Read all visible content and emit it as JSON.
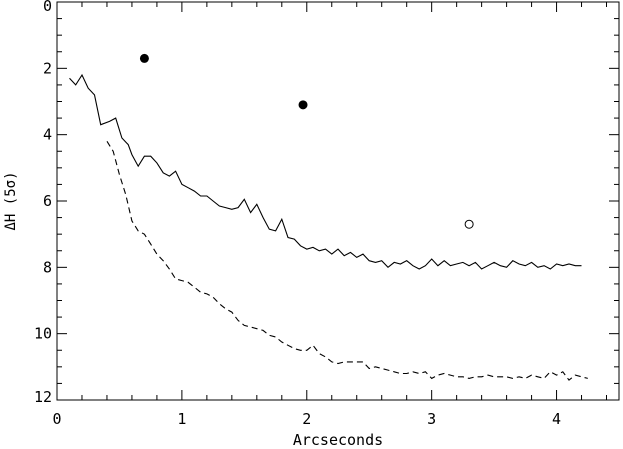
{
  "chart_data": {
    "type": "line",
    "title": "",
    "xlabel": "Arcseconds",
    "ylabel": "ΔH (5σ)",
    "xlim": [
      0,
      4.5
    ],
    "ylim": [
      12,
      0
    ],
    "y_inverted": true,
    "grid": false,
    "legend": "none",
    "x_ticks": [
      0,
      1,
      2,
      3,
      4
    ],
    "x_tick_labels": [
      "0",
      "1",
      "2",
      "3",
      "4"
    ],
    "y_ticks": [
      0,
      2,
      4,
      6,
      8,
      10,
      12
    ],
    "y_tick_labels": [
      "0",
      "2",
      "4",
      "6",
      "8",
      "10",
      "12"
    ],
    "series": [
      {
        "style": "solid",
        "color": "#000000",
        "points": [
          [
            0.1,
            2.3
          ],
          [
            0.15,
            2.5
          ],
          [
            0.2,
            2.2
          ],
          [
            0.25,
            2.6
          ],
          [
            0.3,
            2.8
          ],
          [
            0.35,
            3.7
          ],
          [
            0.42,
            3.6
          ],
          [
            0.47,
            3.5
          ],
          [
            0.52,
            4.1
          ],
          [
            0.57,
            4.3
          ],
          [
            0.6,
            4.6
          ],
          [
            0.65,
            4.95
          ],
          [
            0.7,
            4.65
          ],
          [
            0.75,
            4.65
          ],
          [
            0.8,
            4.85
          ],
          [
            0.85,
            5.15
          ],
          [
            0.9,
            5.25
          ],
          [
            0.95,
            5.1
          ],
          [
            1.0,
            5.5
          ],
          [
            1.05,
            5.6
          ],
          [
            1.1,
            5.7
          ],
          [
            1.15,
            5.85
          ],
          [
            1.2,
            5.85
          ],
          [
            1.25,
            6.0
          ],
          [
            1.3,
            6.15
          ],
          [
            1.35,
            6.2
          ],
          [
            1.4,
            6.25
          ],
          [
            1.45,
            6.2
          ],
          [
            1.5,
            5.95
          ],
          [
            1.55,
            6.35
          ],
          [
            1.6,
            6.1
          ],
          [
            1.65,
            6.5
          ],
          [
            1.7,
            6.85
          ],
          [
            1.75,
            6.9
          ],
          [
            1.8,
            6.55
          ],
          [
            1.85,
            7.1
          ],
          [
            1.9,
            7.15
          ],
          [
            1.95,
            7.35
          ],
          [
            2.0,
            7.45
          ],
          [
            2.05,
            7.4
          ],
          [
            2.1,
            7.5
          ],
          [
            2.15,
            7.45
          ],
          [
            2.2,
            7.6
          ],
          [
            2.25,
            7.45
          ],
          [
            2.3,
            7.65
          ],
          [
            2.35,
            7.55
          ],
          [
            2.4,
            7.7
          ],
          [
            2.45,
            7.6
          ],
          [
            2.5,
            7.8
          ],
          [
            2.55,
            7.85
          ],
          [
            2.6,
            7.8
          ],
          [
            2.65,
            8.0
          ],
          [
            2.7,
            7.85
          ],
          [
            2.75,
            7.9
          ],
          [
            2.8,
            7.8
          ],
          [
            2.85,
            7.95
          ],
          [
            2.9,
            8.05
          ],
          [
            2.95,
            7.95
          ],
          [
            3.0,
            7.75
          ],
          [
            3.05,
            7.95
          ],
          [
            3.1,
            7.8
          ],
          [
            3.15,
            7.95
          ],
          [
            3.2,
            7.9
          ],
          [
            3.25,
            7.85
          ],
          [
            3.3,
            7.95
          ],
          [
            3.35,
            7.85
          ],
          [
            3.4,
            8.05
          ],
          [
            3.45,
            7.95
          ],
          [
            3.5,
            7.85
          ],
          [
            3.55,
            7.95
          ],
          [
            3.6,
            8.0
          ],
          [
            3.65,
            7.8
          ],
          [
            3.7,
            7.9
          ],
          [
            3.75,
            7.95
          ],
          [
            3.8,
            7.85
          ],
          [
            3.85,
            8.0
          ],
          [
            3.9,
            7.95
          ],
          [
            3.95,
            8.05
          ],
          [
            4.0,
            7.9
          ],
          [
            4.05,
            7.95
          ],
          [
            4.1,
            7.9
          ],
          [
            4.15,
            7.95
          ],
          [
            4.2,
            7.95
          ]
        ]
      },
      {
        "style": "dashed",
        "color": "#000000",
        "points": [
          [
            0.4,
            4.2
          ],
          [
            0.45,
            4.5
          ],
          [
            0.5,
            5.2
          ],
          [
            0.55,
            5.8
          ],
          [
            0.6,
            6.6
          ],
          [
            0.65,
            6.9
          ],
          [
            0.7,
            7.0
          ],
          [
            0.75,
            7.3
          ],
          [
            0.8,
            7.6
          ],
          [
            0.85,
            7.8
          ],
          [
            0.9,
            8.05
          ],
          [
            0.95,
            8.35
          ],
          [
            1.0,
            8.4
          ],
          [
            1.05,
            8.45
          ],
          [
            1.1,
            8.6
          ],
          [
            1.15,
            8.75
          ],
          [
            1.2,
            8.8
          ],
          [
            1.25,
            8.9
          ],
          [
            1.3,
            9.1
          ],
          [
            1.35,
            9.25
          ],
          [
            1.4,
            9.35
          ],
          [
            1.45,
            9.6
          ],
          [
            1.5,
            9.75
          ],
          [
            1.55,
            9.8
          ],
          [
            1.6,
            9.85
          ],
          [
            1.65,
            9.9
          ],
          [
            1.7,
            10.05
          ],
          [
            1.75,
            10.1
          ],
          [
            1.8,
            10.25
          ],
          [
            1.85,
            10.35
          ],
          [
            1.9,
            10.45
          ],
          [
            1.95,
            10.5
          ],
          [
            2.0,
            10.5
          ],
          [
            2.05,
            10.35
          ],
          [
            2.1,
            10.6
          ],
          [
            2.15,
            10.7
          ],
          [
            2.2,
            10.85
          ],
          [
            2.25,
            10.9
          ],
          [
            2.3,
            10.85
          ],
          [
            2.35,
            10.85
          ],
          [
            2.4,
            10.85
          ],
          [
            2.45,
            10.85
          ],
          [
            2.5,
            11.05
          ],
          [
            2.55,
            11.0
          ],
          [
            2.6,
            11.05
          ],
          [
            2.65,
            11.1
          ],
          [
            2.7,
            11.15
          ],
          [
            2.75,
            11.2
          ],
          [
            2.8,
            11.2
          ],
          [
            2.85,
            11.15
          ],
          [
            2.9,
            11.2
          ],
          [
            2.95,
            11.15
          ],
          [
            3.0,
            11.35
          ],
          [
            3.05,
            11.25
          ],
          [
            3.1,
            11.2
          ],
          [
            3.15,
            11.25
          ],
          [
            3.2,
            11.3
          ],
          [
            3.25,
            11.3
          ],
          [
            3.3,
            11.35
          ],
          [
            3.35,
            11.3
          ],
          [
            3.4,
            11.3
          ],
          [
            3.45,
            11.25
          ],
          [
            3.5,
            11.3
          ],
          [
            3.55,
            11.3
          ],
          [
            3.6,
            11.3
          ],
          [
            3.65,
            11.35
          ],
          [
            3.7,
            11.3
          ],
          [
            3.75,
            11.35
          ],
          [
            3.8,
            11.25
          ],
          [
            3.85,
            11.3
          ],
          [
            3.9,
            11.35
          ],
          [
            3.95,
            11.15
          ],
          [
            4.0,
            11.25
          ],
          [
            4.05,
            11.15
          ],
          [
            4.1,
            11.4
          ],
          [
            4.15,
            11.25
          ],
          [
            4.2,
            11.3
          ],
          [
            4.25,
            11.35
          ]
        ]
      }
    ],
    "markers": [
      {
        "x": 0.7,
        "y": 1.7,
        "fill": "filled"
      },
      {
        "x": 1.97,
        "y": 3.1,
        "fill": "filled"
      },
      {
        "x": 3.3,
        "y": 6.7,
        "fill": "open"
      }
    ]
  }
}
